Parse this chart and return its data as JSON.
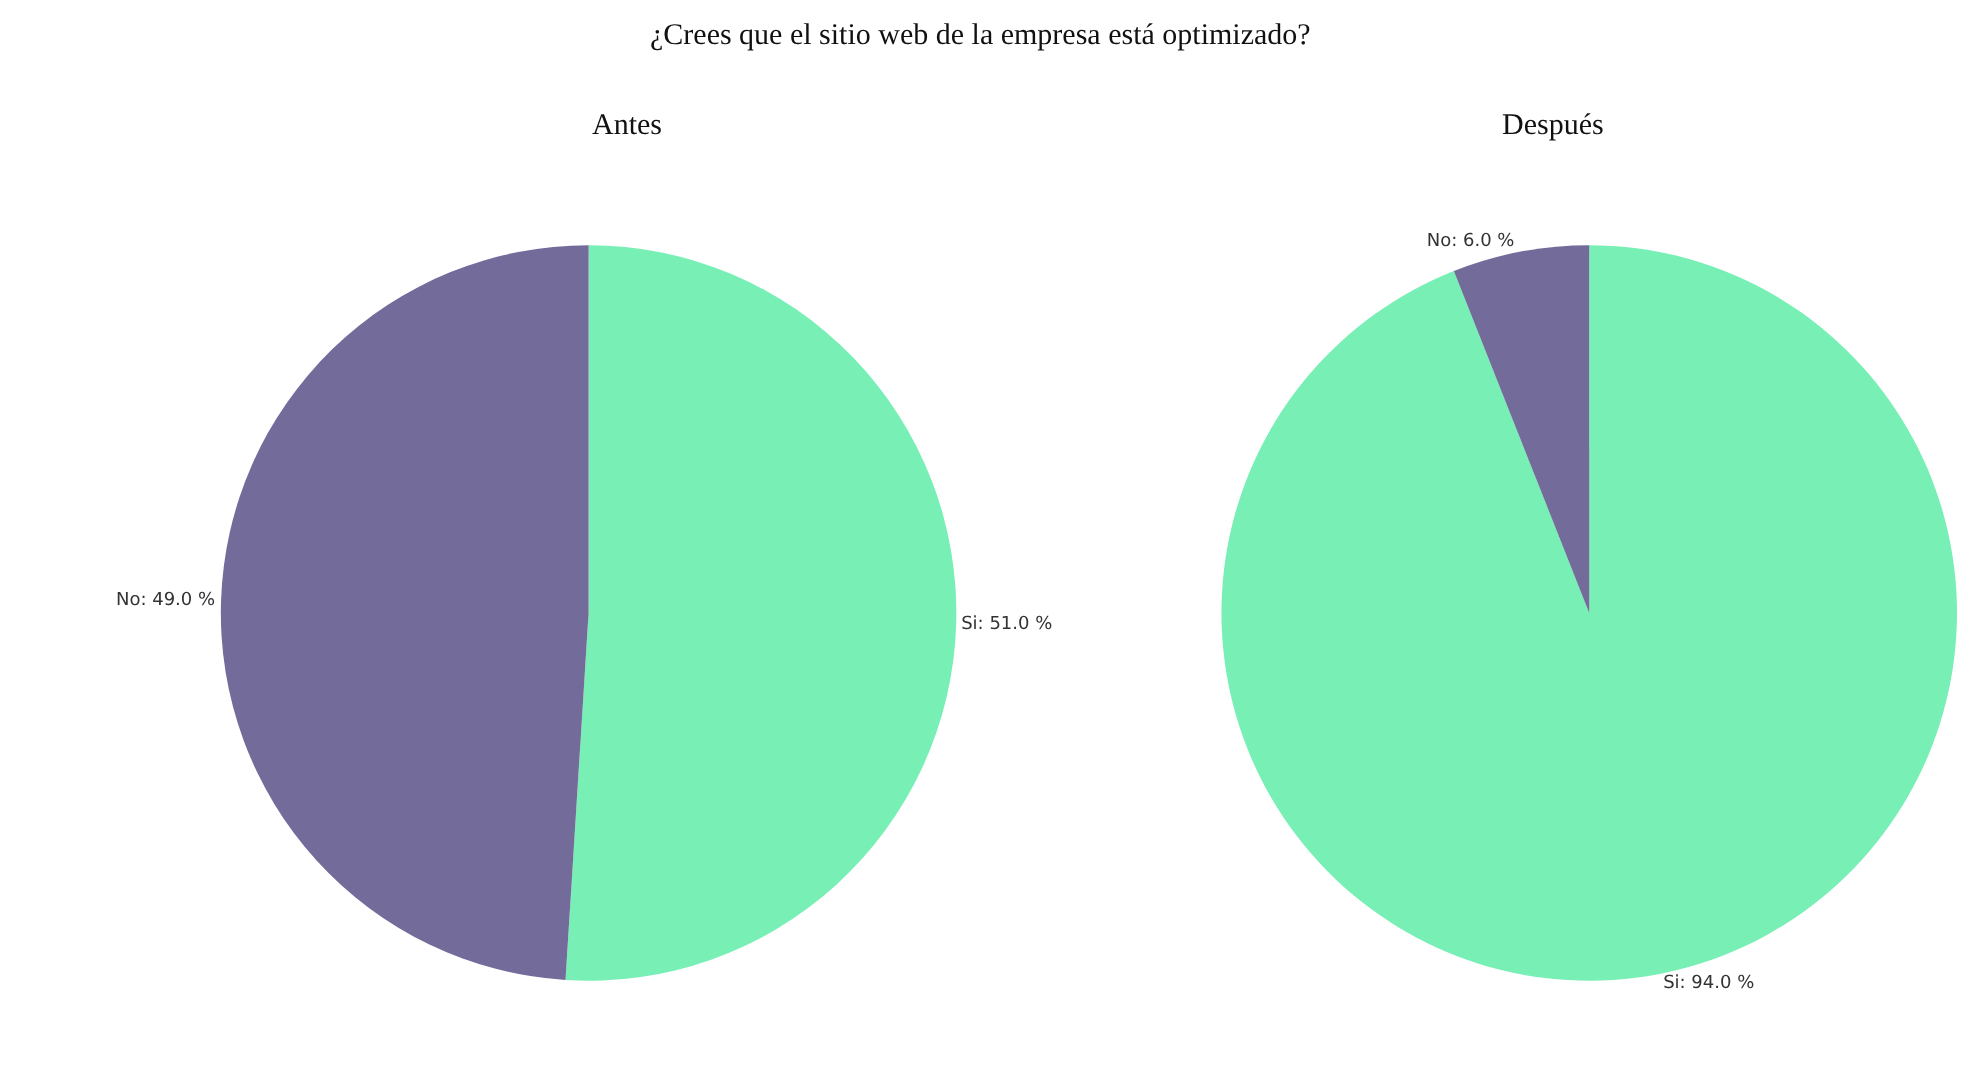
{
  "chart_data": [
    {
      "type": "pie",
      "title": "¿Crees que el sitio web de la empresa está optimizado?",
      "subtitle": "Antes",
      "categories": [
        "Si",
        "No"
      ],
      "values": [
        51,
        49
      ],
      "colors": [
        "#77efb5",
        "#736b9a"
      ],
      "value_labels": [
        "51.0 %",
        "49.0 %"
      ]
    },
    {
      "type": "pie",
      "title": "Después",
      "categories": [
        "Si",
        "No"
      ],
      "values": [
        94,
        6
      ],
      "colors": [
        "#77efb5",
        "#736b9a"
      ],
      "value_labels": [
        "94.0 %",
        "6.0 %"
      ]
    }
  ]
}
